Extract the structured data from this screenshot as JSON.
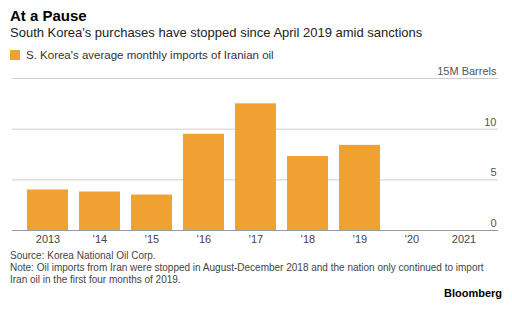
{
  "chart_data": {
    "type": "bar",
    "title": "At a Pause",
    "subtitle": "South Korea's purchases have stopped since April 2019 amid sanctions",
    "categories": [
      "2013",
      "'14",
      "'15",
      "'16",
      "'17",
      "'18",
      "'19",
      "'20",
      "2021"
    ],
    "series": [
      {
        "name": "S. Korea's average monthly imports of Iranian oil",
        "color": "#f0a131",
        "values": [
          4.0,
          3.8,
          3.5,
          9.5,
          12.5,
          7.3,
          8.4,
          0,
          0
        ]
      }
    ],
    "ylim": [
      0,
      15
    ],
    "yticks": [
      0,
      5,
      10,
      {
        "value": 15,
        "label": "15M Barrels"
      }
    ],
    "grid": true,
    "legend": "top-left",
    "source": "Source: Korea National Oil Corp.",
    "note": "Note: Oil imports from Iran were stopped in August-December 2018 and the nation only continued to import Iran oil in the first four months of 2019.",
    "credit": "Bloomberg"
  }
}
